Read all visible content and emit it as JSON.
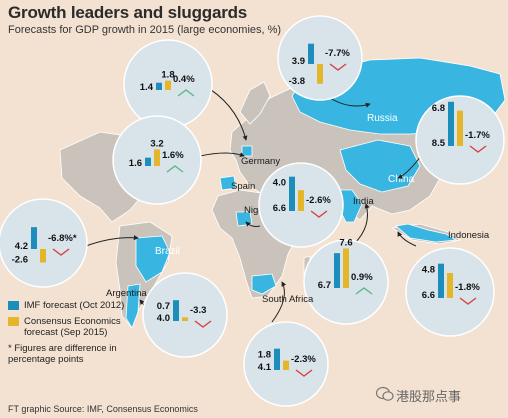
{
  "header": {
    "title": "Growth leaders and sluggards",
    "subtitle": "Forecasts for GDP growth in 2015 (large economies, %)"
  },
  "legend": {
    "imf_label": "IMF forecast (Oct 2012)",
    "consensus_label": "Consensus Economics forecast (Sep 2015)",
    "note": "* Figures are difference in percentage points"
  },
  "footer": {
    "source": "FT graphic  Source: IMF, Consensus Economics",
    "watermark": "港股那点事"
  },
  "colors": {
    "imf": "#1d8dbb",
    "consensus": "#e5b52a",
    "highlight": "#38b6e1",
    "land": "#c9c3bc",
    "sea": "#f3e2d2",
    "bubble": "#d8e3ea",
    "up": "#59b985",
    "down": "#d94040"
  },
  "chart_data": {
    "type": "bar",
    "series": [
      {
        "name": "IMF forecast (Oct 2012)",
        "color": "#1d8dbb"
      },
      {
        "name": "Consensus Economics forecast (Sep 2015)",
        "color": "#e5b52a"
      }
    ],
    "countries": [
      {
        "name": "",
        "imf": "1.4",
        "consensus": "1.8",
        "change": "0.4%",
        "direction": "up"
      },
      {
        "name": "Russia",
        "imf": "3.9",
        "consensus": "-3.8",
        "change": "-7.7%",
        "direction": "down"
      },
      {
        "name": "Germany",
        "imf": "1.6",
        "consensus": "3.2",
        "change": "1.6%",
        "direction": "up"
      },
      {
        "name": "Spain",
        "imf": "",
        "consensus": "",
        "change": "",
        "direction": ""
      },
      {
        "name": "China",
        "imf": "8.5",
        "consensus": "6.8",
        "change": "-1.7%",
        "direction": "down"
      },
      {
        "name": "Nigeria",
        "imf": "6.6",
        "consensus": "4.0",
        "change": "-2.6%",
        "direction": "down"
      },
      {
        "name": "Brazil",
        "imf": "4.2",
        "consensus": "-2.6",
        "change": "-6.8%*",
        "direction": "down"
      },
      {
        "name": "India",
        "imf": "6.7",
        "consensus": "7.6",
        "change": "0.9%",
        "direction": "up"
      },
      {
        "name": "Indonesia",
        "imf": "6.6",
        "consensus": "4.8",
        "change": "-1.8%",
        "direction": "down"
      },
      {
        "name": "Argentina",
        "imf": "4.0",
        "consensus": "0.7",
        "change": "-3.3",
        "direction": "down"
      },
      {
        "name": "South Africa",
        "imf": "4.1",
        "consensus": "1.8",
        "change": "-2.3%",
        "direction": "down"
      }
    ]
  }
}
